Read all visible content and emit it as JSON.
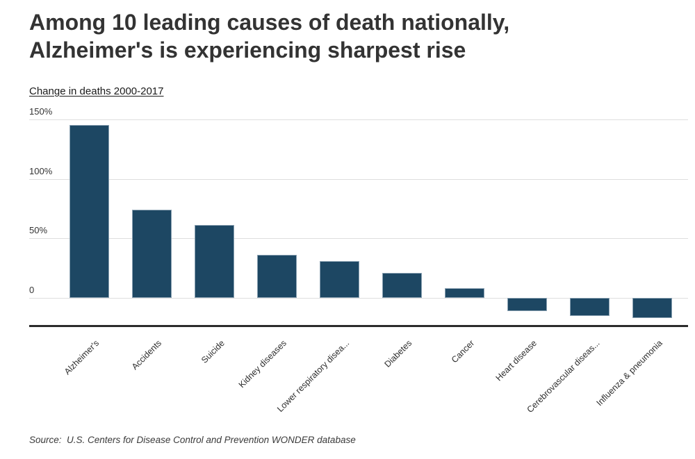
{
  "page": {
    "title_lines": [
      "Among 10 leading causes of death nationally,",
      "Alzheimer's is experiencing sharpest rise"
    ],
    "subtitle": "Change in deaths 2000-2017",
    "source": "Source:  U.S. Centers for Disease Control and Prevention WONDER database"
  },
  "colors": {
    "bar_fill": "#1d4763",
    "bar_stroke": "#8aa1b2",
    "gridline": "#dedede",
    "axis_line": "#2b2b2b",
    "title_text": "#333333"
  },
  "chart_data": {
    "type": "bar",
    "title": "Among 10 leading causes of death nationally, Alzheimer's is experiencing sharpest rise",
    "subtitle": "Change in deaths 2000-2017",
    "xlabel": "",
    "ylabel": "Change in deaths 2000-2017 (%)",
    "categories": [
      "Alzheimer's",
      "Accidents",
      "Suicide",
      "Kidney diseases",
      "Lower respiratory disea...",
      "Diabetes",
      "Cancer",
      "Heart disease",
      "Cerebrovascular diseas...",
      "Influenza & pneumonia"
    ],
    "values": [
      145,
      74,
      61,
      36,
      31,
      21,
      8,
      -11,
      -15,
      -17
    ],
    "unit": "%",
    "yticks": [
      {
        "value": 150,
        "label": "150%"
      },
      {
        "value": 100,
        "label": "100%"
      },
      {
        "value": 50,
        "label": "50%"
      },
      {
        "value": 0,
        "label": "0"
      }
    ],
    "ylim": [
      -25,
      150
    ],
    "grid": "horizontal",
    "legend": "none",
    "bar_color": "#1d4763",
    "source": "U.S. Centers for Disease Control and Prevention WONDER database"
  }
}
